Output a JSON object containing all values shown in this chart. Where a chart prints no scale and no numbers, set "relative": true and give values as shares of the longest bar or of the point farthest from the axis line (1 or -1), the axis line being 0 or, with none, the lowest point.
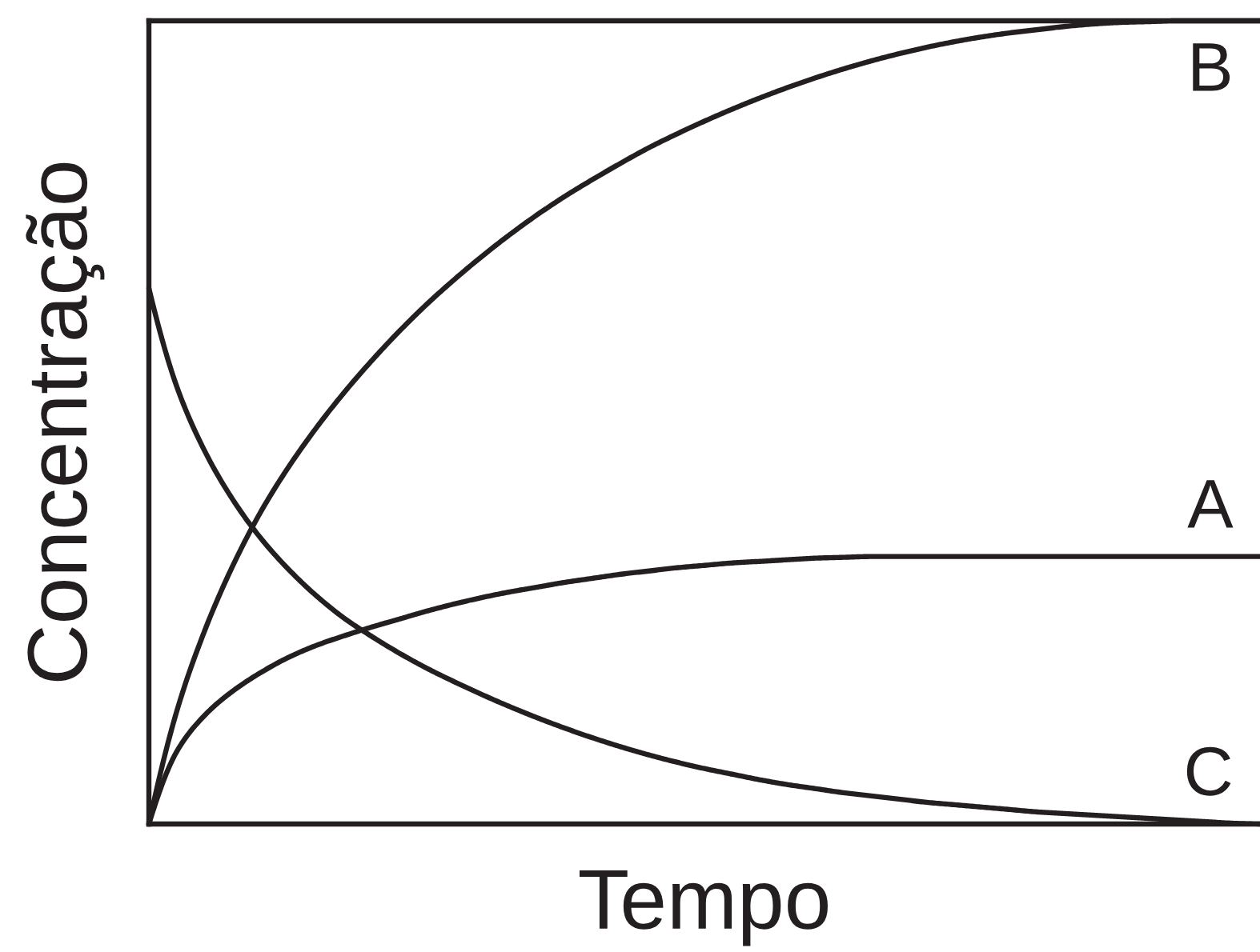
{
  "chart_data": {
    "type": "line",
    "relative": true,
    "xlabel": "Tempo",
    "ylabel": "Concentração",
    "line_style": "solid",
    "categories": [
      null,
      null,
      null,
      null,
      null,
      null,
      null,
      null,
      null,
      null,
      null,
      null,
      null,
      null,
      null,
      null,
      null,
      null,
      null,
      null,
      null,
      null,
      null,
      null,
      null,
      null,
      null,
      null,
      null,
      null,
      null,
      null,
      null,
      null,
      null,
      null,
      null,
      null,
      null,
      null,
      null
    ],
    "series": [
      {
        "name": "B",
        "color": "#231f20",
        "values": [
          0,
          0.14,
          0.24,
          0.32,
          0.387,
          0.443,
          0.492,
          0.536,
          0.576,
          0.613,
          0.647,
          0.678,
          0.707,
          0.734,
          0.759,
          0.782,
          0.803,
          0.823,
          0.842,
          0.859,
          0.875,
          0.89,
          0.904,
          0.917,
          0.929,
          0.94,
          0.95,
          0.959,
          0.967,
          0.974,
          0.98,
          0.985,
          0.989,
          0.993,
          0.996,
          0.998,
          0.999,
          1,
          1,
          1,
          1
        ]
      },
      {
        "name": "A",
        "color": "#231f20",
        "values": [
          0,
          0.09,
          0.135,
          0.165,
          0.188,
          0.207,
          0.222,
          0.234,
          0.245,
          0.255,
          0.265,
          0.274,
          0.282,
          0.289,
          0.295,
          0.301,
          0.306,
          0.311,
          0.315,
          0.319,
          0.322,
          0.325,
          0.327,
          0.329,
          0.331,
          0.332,
          0.333,
          0.333,
          0.333,
          0.333,
          0.333,
          0.333,
          0.333,
          0.333,
          0.333,
          0.333,
          0.333,
          0.333,
          0.333,
          0.333,
          0.333
        ]
      },
      {
        "name": "C",
        "color": "#231f20",
        "values": [
          0.667,
          0.545,
          0.465,
          0.405,
          0.357,
          0.318,
          0.285,
          0.257,
          0.234,
          0.213,
          0.194,
          0.177,
          0.161,
          0.146,
          0.132,
          0.119,
          0.107,
          0.096,
          0.086,
          0.077,
          0.069,
          0.062,
          0.055,
          0.049,
          0.044,
          0.039,
          0.035,
          0.031,
          0.027,
          0.024,
          0.021,
          0.018,
          0.015,
          0.013,
          0.011,
          0.009,
          0.007,
          0.005,
          0.003,
          0.001,
          0
        ]
      }
    ]
  }
}
